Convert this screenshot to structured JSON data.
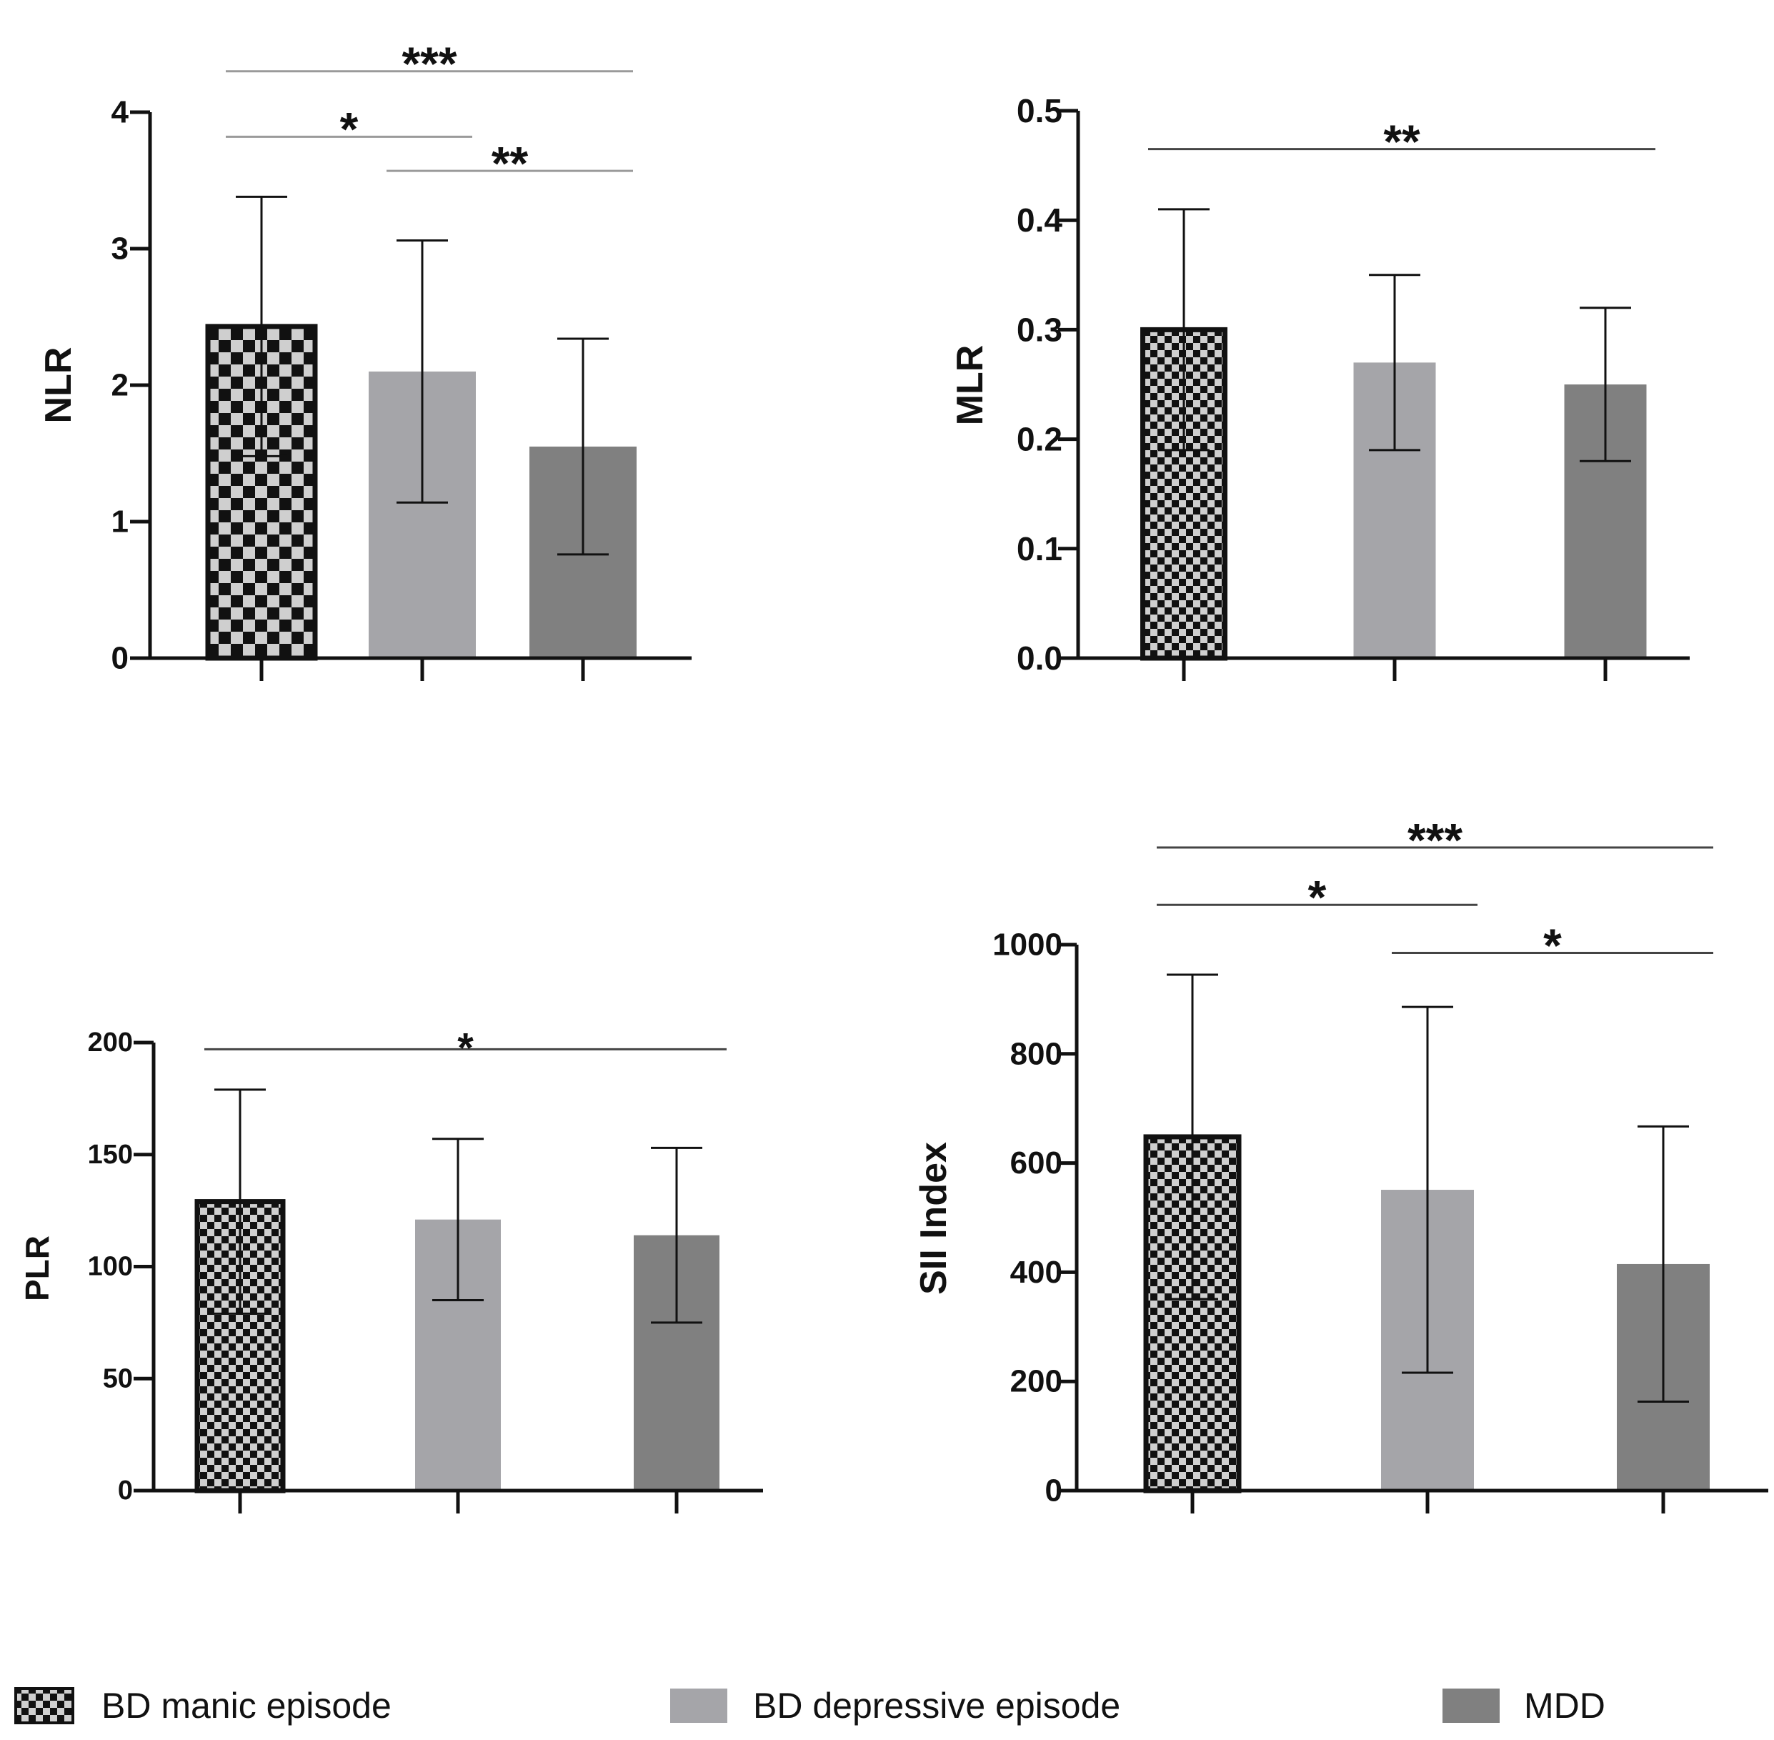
{
  "legend": {
    "items": [
      {
        "key": "manic",
        "label": "BD manic episode",
        "pattern": "checker"
      },
      {
        "key": "depressive",
        "label": "BD depressive episode",
        "color": "#a5a5a9"
      },
      {
        "key": "mdd",
        "label": "MDD",
        "color": "#808080"
      }
    ]
  },
  "colors": {
    "checker_dark": "#111111",
    "checker_light": "#cfcfcf",
    "depressive": "#a5a5a9",
    "mdd": "#808080",
    "axis": "#111111"
  },
  "chart_data": [
    {
      "id": "nlr",
      "type": "bar",
      "ylabel": "NLR",
      "ylim": [
        0,
        4
      ],
      "yticks": [
        "0",
        "1",
        "2",
        "3",
        "4"
      ],
      "categories": [
        "BD manic episode",
        "BD depressive episode",
        "MDD"
      ],
      "values": [
        2.43,
        2.1,
        1.55
      ],
      "errors": [
        0.95,
        0.96,
        0.79
      ],
      "significance": [
        {
          "from": 0,
          "to": 2,
          "label": "***",
          "level": 4.3
        },
        {
          "from": 0,
          "to": 1,
          "label": "*",
          "level": 3.82
        },
        {
          "from": 1,
          "to": 2,
          "label": "**",
          "level": 3.57
        }
      ]
    },
    {
      "id": "mlr",
      "type": "bar",
      "ylabel": "MLR",
      "ylim": [
        0,
        0.5
      ],
      "yticks": [
        "0.0",
        "0.1",
        "0.2",
        "0.3",
        "0.4",
        "0.5"
      ],
      "categories": [
        "BD manic episode",
        "BD depressive episode",
        "MDD"
      ],
      "values": [
        0.3,
        0.27,
        0.25
      ],
      "errors": [
        0.11,
        0.08,
        0.07
      ],
      "significance": [
        {
          "from": 0,
          "to": 2,
          "label": "**",
          "level": 0.465
        }
      ]
    },
    {
      "id": "plr",
      "type": "bar",
      "ylabel": "PLR",
      "ylim": [
        0,
        200
      ],
      "yticks": [
        "0",
        "50",
        "100",
        "150",
        "200"
      ],
      "categories": [
        "BD manic episode",
        "BD depressive episode",
        "MDD"
      ],
      "values": [
        129,
        121,
        114
      ],
      "errors": [
        50,
        36,
        39
      ],
      "significance": [
        {
          "from": 0,
          "to": 2,
          "label": "*",
          "level": 197
        }
      ]
    },
    {
      "id": "sii",
      "type": "bar",
      "ylabel": "SII Index",
      "ylim": [
        0,
        1000
      ],
      "yticks": [
        "0",
        "200",
        "400",
        "600",
        "800",
        "1000"
      ],
      "categories": [
        "BD manic episode",
        "BD depressive episode",
        "MDD"
      ],
      "values": [
        648,
        551,
        415
      ],
      "errors": [
        297,
        335,
        252
      ],
      "significance": [
        {
          "from": 0,
          "to": 2,
          "label": "***",
          "level": 1178
        },
        {
          "from": 0,
          "to": 1,
          "label": "*",
          "level": 1073
        },
        {
          "from": 1,
          "to": 2,
          "label": "*",
          "level": 985
        }
      ]
    }
  ]
}
